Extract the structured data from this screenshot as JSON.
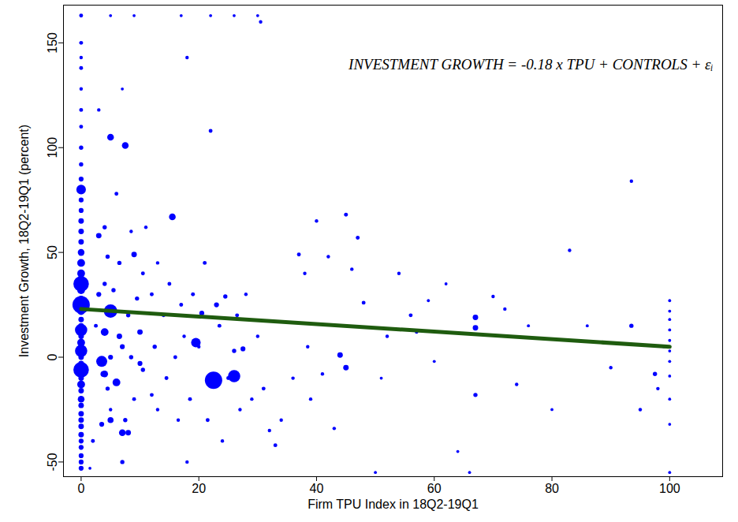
{
  "chart_data": {
    "type": "scatter",
    "annotation": "INVESTMENT GROWTH = -0.18 x TPU + CONTROLS + εᵢ",
    "x_label": "Firm TPU Index in 18Q2-19Q1",
    "y_label": "Investment Growth, 18Q2-19Q1 (percent)",
    "xlim": [
      -3,
      109
    ],
    "ylim": [
      -57,
      168
    ],
    "xticks": [
      0,
      20,
      40,
      60,
      80,
      100
    ],
    "yticks": [
      -50,
      0,
      50,
      100,
      150
    ],
    "series": [
      {
        "type": "scatter",
        "marker": "circle",
        "color": "#0000ff",
        "x": [
          0,
          0,
          0,
          0,
          0,
          0,
          0,
          0,
          0,
          0,
          0,
          0,
          0,
          0,
          0,
          0,
          0,
          0,
          0,
          0,
          0,
          0,
          0,
          0,
          0,
          0,
          0,
          0,
          0,
          0,
          0,
          0,
          0,
          0,
          0,
          0,
          0,
          0,
          0,
          0,
          0,
          0,
          0,
          0,
          0,
          0,
          0,
          0,
          0,
          1.5,
          2,
          2.5,
          3,
          3,
          3.5,
          3.8,
          4,
          4,
          4.5,
          4.5,
          5,
          5,
          5.5,
          6,
          6,
          6.5,
          6.5,
          7,
          7,
          7.5,
          8,
          8,
          8.5,
          8.5,
          9,
          9,
          9.5,
          10,
          10,
          10.5,
          10.5,
          11,
          12,
          12,
          12.5,
          13,
          13,
          14,
          14.5,
          15,
          16,
          16.5,
          17,
          17.5,
          18,
          18.5,
          19,
          20,
          20.5,
          21,
          21.5,
          22,
          23,
          23.5,
          24,
          24.5,
          25,
          26,
          26.5,
          27,
          27.5,
          28,
          29,
          30,
          31,
          32,
          33,
          34,
          36,
          37,
          38,
          38.5,
          39,
          40,
          41,
          42,
          43,
          44,
          45,
          45,
          46,
          47,
          48,
          50,
          51,
          52,
          54,
          56,
          57,
          59,
          60,
          62,
          64,
          66,
          67,
          67,
          67,
          70,
          72,
          74,
          76,
          80,
          83,
          86,
          90,
          93.5,
          93.5,
          95,
          97.5,
          98,
          99,
          100,
          100,
          100,
          100,
          100,
          100,
          100,
          100,
          100,
          100,
          100,
          5,
          22.5,
          26,
          19.5,
          3.5,
          4,
          15.5,
          7.5,
          5,
          7,
          4,
          5,
          5,
          9,
          17,
          22,
          26,
          30,
          18,
          3,
          7,
          30.5
        ],
        "values": [
          163,
          150,
          143,
          138,
          128,
          118,
          110,
          100,
          92,
          85,
          80,
          75,
          70,
          65,
          60,
          55,
          50,
          45,
          40,
          38,
          35,
          32,
          28,
          25,
          22,
          18,
          15,
          13,
          10,
          7,
          5,
          3,
          0,
          -3,
          -6,
          -10,
          -13,
          -16,
          -20,
          -23,
          -27,
          -30,
          -33,
          -37,
          -40,
          -43,
          -47,
          -50,
          -53,
          -53,
          -40,
          15,
          58,
          30,
          -32,
          -8,
          35,
          62,
          -15,
          48,
          0,
          -25,
          32,
          -12,
          78,
          10,
          45,
          -50,
          5,
          -30,
          20,
          -36,
          60,
          0,
          -20,
          49,
          28,
          -3,
          12,
          -6,
          40,
          62,
          -18,
          30,
          5,
          -25,
          45,
          20,
          -10,
          35,
          0,
          -30,
          25,
          10,
          -50,
          -20,
          30,
          5,
          21,
          45,
          -30,
          108,
          25,
          15,
          -40,
          29,
          -10,
          3,
          20,
          -25,
          4,
          30,
          -20,
          10,
          -15,
          -35,
          -42,
          -30,
          -10,
          49,
          40,
          5,
          -20,
          65,
          -8,
          48,
          -34,
          1,
          -5,
          68,
          42,
          57,
          26,
          -55,
          -10,
          10,
          40,
          20,
          12,
          27,
          -2,
          35,
          -45,
          -55,
          19,
          14,
          -18,
          29,
          23,
          -13,
          15,
          -25,
          51,
          15,
          -5,
          15,
          84,
          -25,
          -8,
          -15,
          5,
          27,
          22,
          18,
          13,
          8,
          3,
          -2,
          -9,
          -20,
          -32,
          -55,
          22,
          -11,
          -9,
          7,
          -2,
          12,
          67,
          101,
          105,
          -36,
          -8,
          -30,
          163,
          163,
          163,
          163,
          163,
          163,
          143,
          118,
          128,
          160
        ],
        "sizes": [
          0.5,
          0.5,
          0.4,
          0.5,
          0.4,
          0.5,
          0.5,
          0.6,
          0.6,
          0.8,
          3,
          0.8,
          0.8,
          1,
          1,
          1,
          1.5,
          2,
          2,
          1,
          8,
          2,
          1,
          10,
          2,
          1,
          1,
          5,
          1,
          2,
          1,
          5,
          1,
          1,
          8,
          1,
          2,
          1,
          1.5,
          1,
          1,
          1,
          1,
          1,
          0.8,
          0.8,
          0.8,
          0.8,
          0.8,
          0.3,
          0.5,
          0.5,
          1,
          0.8,
          0.8,
          1.2,
          0.6,
          0.6,
          0.6,
          0.6,
          0.8,
          0.4,
          0.6,
          2,
          0.5,
          1,
          0.6,
          0.6,
          0.8,
          0.6,
          0.6,
          1,
          0.4,
          0.6,
          0.5,
          1,
          0.6,
          0.8,
          1,
          0.6,
          0.5,
          0.4,
          0.5,
          0.5,
          0.6,
          0.4,
          0.4,
          0.5,
          0.5,
          0.5,
          0.5,
          0.4,
          0.5,
          0.4,
          0.4,
          0.5,
          0.5,
          0.4,
          0.8,
          0.5,
          0.5,
          0.5,
          0.8,
          0.5,
          0.4,
          0.6,
          0.5,
          0.6,
          0.5,
          0.4,
          0.8,
          0.4,
          0.4,
          0.4,
          0.5,
          0.4,
          0.5,
          0.4,
          0.4,
          0.5,
          0.4,
          0.4,
          0.4,
          0.4,
          0.4,
          0.4,
          0.4,
          1,
          1,
          0.5,
          0.4,
          0.5,
          0.5,
          0.3,
          0.3,
          0.4,
          0.4,
          0.5,
          0.4,
          0.3,
          0.3,
          0.3,
          0.3,
          0.3,
          1,
          1,
          0.6,
          0.4,
          0.4,
          0.4,
          0.3,
          0.3,
          0.4,
          0.3,
          0.4,
          0.6,
          0.4,
          0.4,
          0.6,
          0.4,
          0.3,
          0.3,
          0.3,
          0.3,
          0.3,
          0.3,
          0.3,
          0.3,
          0.3,
          0.3,
          0.3,
          0.3,
          6,
          10,
          5,
          3,
          4,
          2,
          1.5,
          1.5,
          1.5,
          1.5,
          1.5,
          1.2,
          0.3,
          0.3,
          0.3,
          0.3,
          0.3,
          0.3,
          0.4,
          0.4,
          0.3,
          0.4
        ]
      },
      {
        "type": "line",
        "line_style": "solid",
        "color": "#1f5c0f",
        "x": [
          0,
          100
        ],
        "values": [
          23,
          5
        ]
      }
    ]
  }
}
